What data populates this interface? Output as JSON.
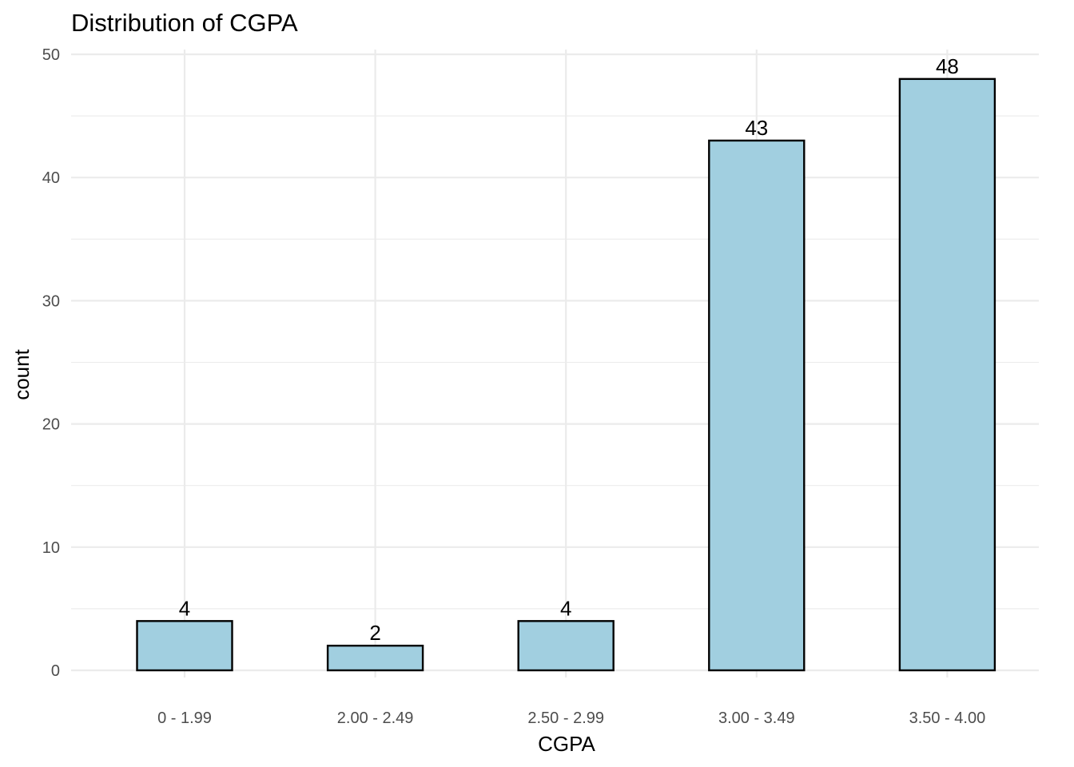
{
  "chart_data": {
    "type": "bar",
    "title": "Distribution of CGPA",
    "xlabel": "CGPA",
    "ylabel": "count",
    "categories": [
      "0 - 1.99",
      "2.00 - 2.49",
      "2.50 - 2.99",
      "3.00 - 3.49",
      "3.50 - 4.00"
    ],
    "values": [
      4,
      2,
      4,
      43,
      48
    ],
    "data_labels": [
      "4",
      "2",
      "4",
      "43",
      "48"
    ],
    "ylim": [
      0,
      50
    ],
    "yticks": [
      0,
      10,
      20,
      30,
      40,
      50
    ],
    "ytick_labels": [
      "0",
      "10",
      "20",
      "30",
      "40",
      "50"
    ],
    "grid": true,
    "legend": "none",
    "colors": {
      "bar_fill": "#a1cfe0",
      "bar_stroke": "#000000"
    }
  }
}
